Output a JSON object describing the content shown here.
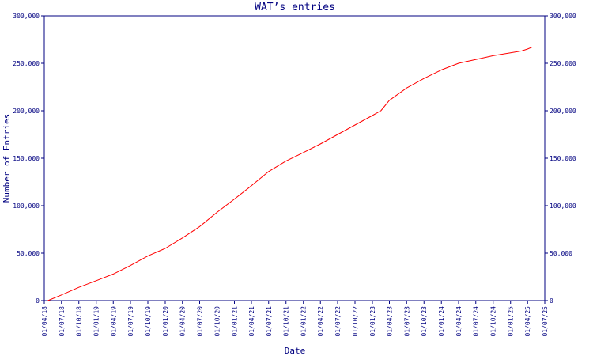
{
  "chart_data": {
    "type": "line",
    "title": "WAT’s entries",
    "xlabel": "Date",
    "ylabel": "Number of Entries",
    "xlim": [
      "2018-04-01",
      "2025-07-01"
    ],
    "ylim": [
      0,
      300000
    ],
    "grid": false,
    "y_ticks": [
      {
        "value": 0,
        "label": "0"
      },
      {
        "value": 50000,
        "label": "50,000"
      },
      {
        "value": 100000,
        "label": "100,000"
      },
      {
        "value": 150000,
        "label": "150,000"
      },
      {
        "value": 200000,
        "label": "200,000"
      },
      {
        "value": 250000,
        "label": "250,000"
      },
      {
        "value": 300000,
        "label": "300,000"
      }
    ],
    "x_ticks": [
      {
        "value": "2018-04-01",
        "label": "01/04/18"
      },
      {
        "value": "2018-07-01",
        "label": "01/07/18"
      },
      {
        "value": "2018-10-01",
        "label": "01/10/18"
      },
      {
        "value": "2019-01-01",
        "label": "01/01/19"
      },
      {
        "value": "2019-04-01",
        "label": "01/04/19"
      },
      {
        "value": "2019-07-01",
        "label": "01/07/19"
      },
      {
        "value": "2019-10-01",
        "label": "01/10/19"
      },
      {
        "value": "2020-01-01",
        "label": "01/01/20"
      },
      {
        "value": "2020-04-01",
        "label": "01/04/20"
      },
      {
        "value": "2020-07-01",
        "label": "01/07/20"
      },
      {
        "value": "2020-10-01",
        "label": "01/10/20"
      },
      {
        "value": "2021-01-01",
        "label": "01/01/21"
      },
      {
        "value": "2021-04-01",
        "label": "01/04/21"
      },
      {
        "value": "2021-07-01",
        "label": "01/07/21"
      },
      {
        "value": "2021-10-01",
        "label": "01/10/21"
      },
      {
        "value": "2022-01-01",
        "label": "01/01/22"
      },
      {
        "value": "2022-04-01",
        "label": "01/04/22"
      },
      {
        "value": "2022-07-01",
        "label": "01/07/22"
      },
      {
        "value": "2022-10-01",
        "label": "01/10/22"
      },
      {
        "value": "2023-01-01",
        "label": "01/01/23"
      },
      {
        "value": "2023-04-01",
        "label": "01/04/23"
      },
      {
        "value": "2023-07-01",
        "label": "01/07/23"
      },
      {
        "value": "2023-10-01",
        "label": "01/10/23"
      },
      {
        "value": "2024-01-01",
        "label": "01/01/24"
      },
      {
        "value": "2024-04-01",
        "label": "01/04/24"
      },
      {
        "value": "2024-07-01",
        "label": "01/07/24"
      },
      {
        "value": "2024-10-01",
        "label": "01/10/24"
      },
      {
        "value": "2025-01-01",
        "label": "01/01/25"
      },
      {
        "value": "2025-04-01",
        "label": "01/04/25"
      },
      {
        "value": "2025-07-01",
        "label": "01/07/25"
      }
    ],
    "series": [
      {
        "color": "#ff0000",
        "points": [
          [
            "2018-04-20",
            0
          ],
          [
            "2018-07-01",
            6000
          ],
          [
            "2018-10-01",
            14000
          ],
          [
            "2019-01-01",
            21000
          ],
          [
            "2019-04-01",
            28000
          ],
          [
            "2019-07-01",
            37000
          ],
          [
            "2019-10-01",
            47000
          ],
          [
            "2020-01-01",
            55000
          ],
          [
            "2020-04-01",
            66000
          ],
          [
            "2020-07-01",
            78000
          ],
          [
            "2020-10-01",
            93000
          ],
          [
            "2021-01-01",
            107000
          ],
          [
            "2021-04-01",
            121000
          ],
          [
            "2021-07-01",
            136000
          ],
          [
            "2021-10-01",
            147000
          ],
          [
            "2022-01-01",
            156000
          ],
          [
            "2022-04-01",
            165000
          ],
          [
            "2022-07-01",
            175000
          ],
          [
            "2022-10-01",
            185000
          ],
          [
            "2023-01-01",
            195000
          ],
          [
            "2023-02-15",
            200000
          ],
          [
            "2023-04-01",
            211000
          ],
          [
            "2023-07-01",
            224000
          ],
          [
            "2023-10-01",
            234000
          ],
          [
            "2024-01-01",
            243000
          ],
          [
            "2024-04-01",
            250000
          ],
          [
            "2024-07-01",
            254000
          ],
          [
            "2024-10-01",
            258000
          ],
          [
            "2025-01-01",
            261000
          ],
          [
            "2025-03-01",
            263000
          ],
          [
            "2025-04-01",
            265000
          ],
          [
            "2025-04-25",
            267000
          ]
        ]
      }
    ],
    "colors": {
      "axis": "#000080",
      "text": "#000080",
      "series": "#ff0000"
    }
  }
}
